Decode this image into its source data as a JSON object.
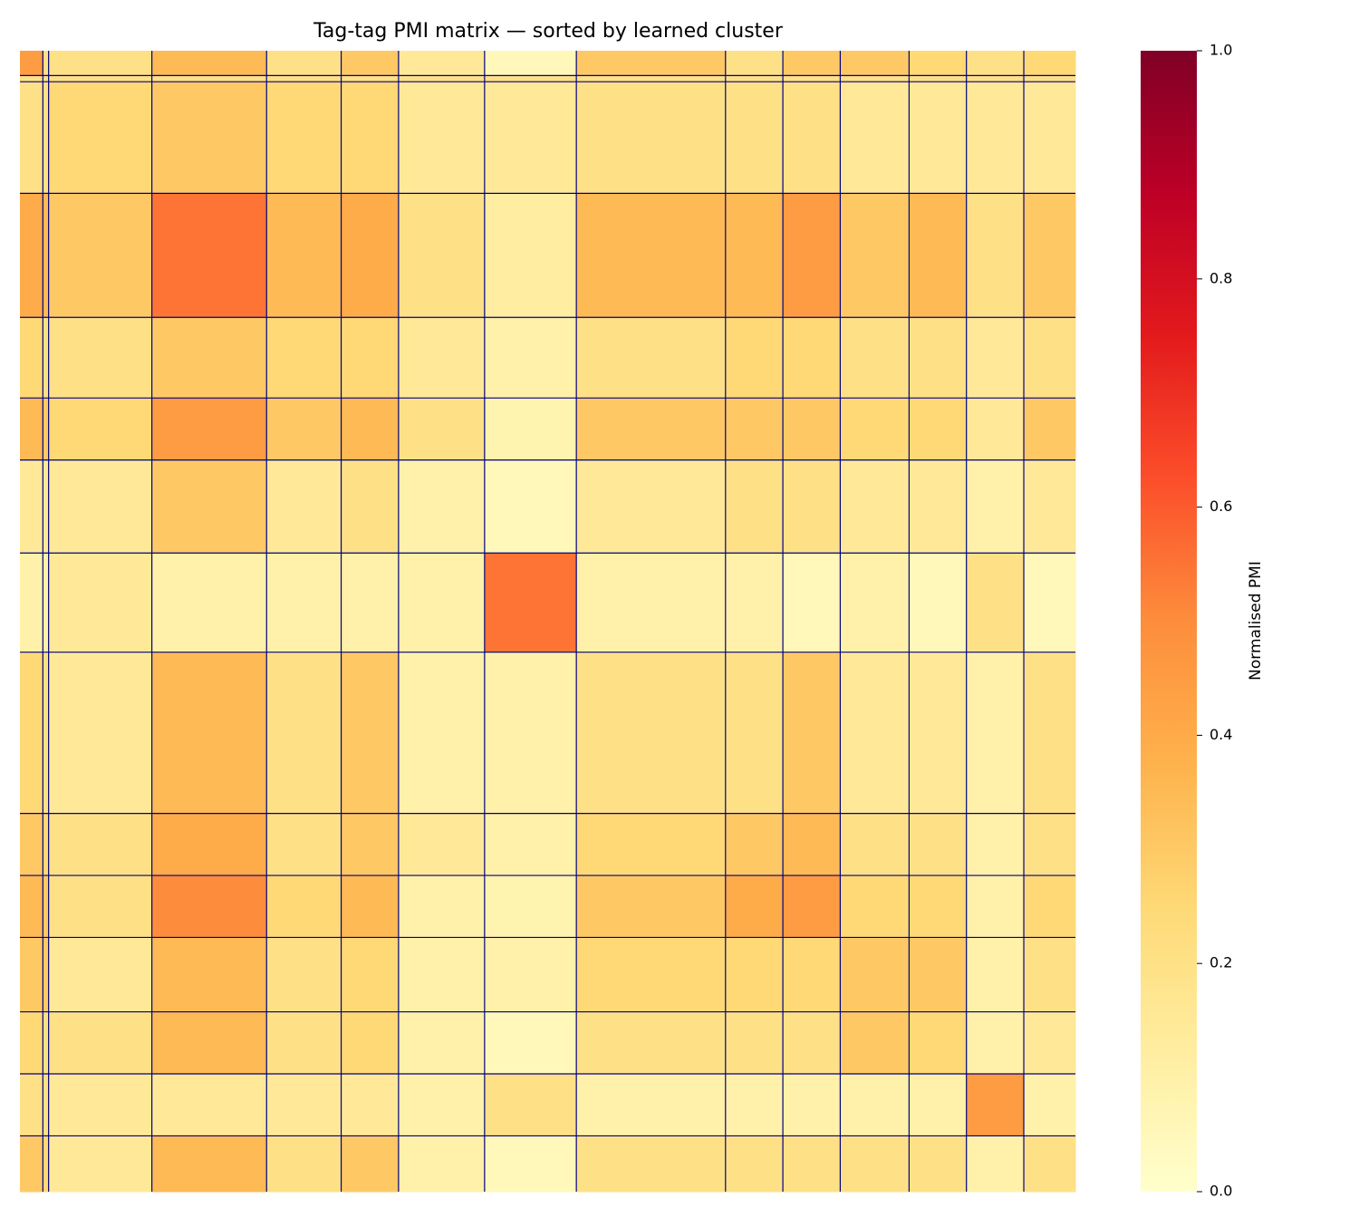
{
  "chart_data": {
    "type": "heatmap",
    "title": "Tag-tag PMI matrix — sorted by learned cluster",
    "colorbar_label": "Normalised PMI",
    "xbins": [
      0,
      4,
      5,
      23,
      43,
      56,
      66,
      81,
      97,
      123,
      133,
      143,
      155,
      165,
      175,
      184
    ],
    "ybins": [
      0,
      4,
      5,
      23,
      43,
      56,
      66,
      81,
      97,
      123,
      133,
      143,
      155,
      165,
      175,
      184
    ],
    "values": [
      [
        0.45,
        0.2,
        0.2,
        0.35,
        0.2,
        0.3,
        0.15,
        0.05,
        0.3,
        0.2,
        0.3,
        0.3,
        0.25,
        0.2,
        0.25
      ],
      [
        0.2,
        0.2,
        0.2,
        0.2,
        0.2,
        0.2,
        0.2,
        0.2,
        0.2,
        0.2,
        0.2,
        0.2,
        0.2,
        0.2,
        0.2
      ],
      [
        0.2,
        0.2,
        0.25,
        0.3,
        0.25,
        0.25,
        0.15,
        0.15,
        0.2,
        0.2,
        0.2,
        0.15,
        0.15,
        0.15,
        0.15
      ],
      [
        0.4,
        0.35,
        0.3,
        0.55,
        0.35,
        0.4,
        0.2,
        0.12,
        0.35,
        0.35,
        0.45,
        0.3,
        0.35,
        0.2,
        0.3
      ],
      [
        0.25,
        0.2,
        0.2,
        0.3,
        0.25,
        0.25,
        0.15,
        0.1,
        0.2,
        0.25,
        0.25,
        0.2,
        0.2,
        0.15,
        0.2
      ],
      [
        0.35,
        0.3,
        0.25,
        0.45,
        0.3,
        0.35,
        0.2,
        0.08,
        0.3,
        0.3,
        0.3,
        0.25,
        0.25,
        0.15,
        0.3
      ],
      [
        0.15,
        0.15,
        0.15,
        0.3,
        0.15,
        0.2,
        0.1,
        0.05,
        0.15,
        0.2,
        0.2,
        0.15,
        0.15,
        0.1,
        0.15
      ],
      [
        0.1,
        0.1,
        0.15,
        0.1,
        0.1,
        0.1,
        0.1,
        0.55,
        0.1,
        0.1,
        0.05,
        0.1,
        0.05,
        0.2,
        0.05
      ],
      [
        0.25,
        0.2,
        0.15,
        0.35,
        0.2,
        0.3,
        0.1,
        0.1,
        0.2,
        0.2,
        0.3,
        0.15,
        0.15,
        0.1,
        0.2
      ],
      [
        0.3,
        0.25,
        0.2,
        0.4,
        0.2,
        0.3,
        0.15,
        0.1,
        0.25,
        0.3,
        0.35,
        0.2,
        0.2,
        0.1,
        0.2
      ],
      [
        0.35,
        0.3,
        0.2,
        0.5,
        0.25,
        0.35,
        0.1,
        0.08,
        0.3,
        0.4,
        0.45,
        0.25,
        0.25,
        0.1,
        0.25
      ],
      [
        0.3,
        0.3,
        0.15,
        0.35,
        0.2,
        0.25,
        0.1,
        0.1,
        0.25,
        0.25,
        0.25,
        0.3,
        0.3,
        0.1,
        0.2
      ],
      [
        0.25,
        0.2,
        0.2,
        0.35,
        0.2,
        0.25,
        0.1,
        0.05,
        0.2,
        0.2,
        0.2,
        0.3,
        0.25,
        0.1,
        0.15
      ],
      [
        0.2,
        0.2,
        0.15,
        0.15,
        0.15,
        0.15,
        0.1,
        0.2,
        0.1,
        0.1,
        0.1,
        0.1,
        0.1,
        0.45,
        0.1
      ],
      [
        0.3,
        0.25,
        0.15,
        0.35,
        0.2,
        0.3,
        0.1,
        0.05,
        0.2,
        0.2,
        0.2,
        0.2,
        0.2,
        0.1,
        0.2
      ]
    ],
    "zlim": [
      0,
      1
    ],
    "zticks": [
      {
        "value": 0,
        "label": "0.0"
      },
      0.2,
      0.4,
      0.6,
      0.8,
      {
        "value": 1,
        "label": "1.0"
      }
    ],
    "colors": [
      "#ffffcc",
      "#ffeda0",
      "#fed976",
      "#feb24c",
      "#fd8d3c",
      "#fc4e2a",
      "#e31a1c",
      "#bd0026",
      "#800026"
    ],
    "boundary_color": "#000080"
  }
}
